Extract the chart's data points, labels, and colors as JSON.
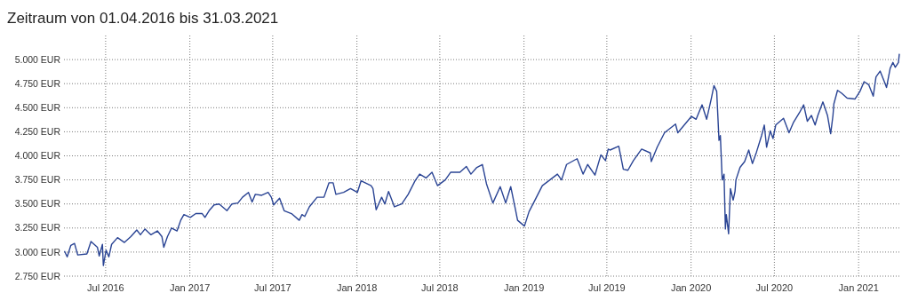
{
  "chart_data": {
    "type": "line",
    "title": "Zeitraum von 01.04.2016 bis 31.03.2021",
    "x": [
      "2016-04-02",
      "2016-04-08",
      "2016-04-16",
      "2016-04-24",
      "2016-05-01",
      "2016-05-21",
      "2016-05-30",
      "2016-06-13",
      "2016-06-17",
      "2016-06-24",
      "2016-06-26",
      "2016-07-02",
      "2016-07-08",
      "2016-07-14",
      "2016-07-27",
      "2016-08-11",
      "2016-08-25",
      "2016-09-07",
      "2016-09-15",
      "2016-09-25",
      "2016-10-08",
      "2016-10-22",
      "2016-11-01",
      "2016-11-05",
      "2016-11-13",
      "2016-11-22",
      "2016-12-04",
      "2016-12-12",
      "2016-12-19",
      "2017-01-02",
      "2017-01-14",
      "2017-01-28",
      "2017-02-03",
      "2017-02-12",
      "2017-02-23",
      "2017-03-06",
      "2017-03-23",
      "2017-04-03",
      "2017-04-16",
      "2017-04-26",
      "2017-05-09",
      "2017-05-17",
      "2017-05-24",
      "2017-06-07",
      "2017-06-21",
      "2017-06-28",
      "2017-07-03",
      "2017-07-16",
      "2017-07-26",
      "2017-08-11",
      "2017-08-28",
      "2017-09-03",
      "2017-09-09",
      "2017-09-19",
      "2017-10-06",
      "2017-10-21",
      "2017-11-01",
      "2017-11-10",
      "2017-11-16",
      "2017-12-03",
      "2017-12-18",
      "2018-01-02",
      "2018-01-10",
      "2018-02-01",
      "2018-02-05",
      "2018-02-12",
      "2018-02-24",
      "2018-03-03",
      "2018-03-11",
      "2018-03-24",
      "2018-04-09",
      "2018-04-23",
      "2018-05-08",
      "2018-05-18",
      "2018-06-01",
      "2018-06-14",
      "2018-06-26",
      "2018-07-13",
      "2018-07-25",
      "2018-08-14",
      "2018-08-28",
      "2018-09-07",
      "2018-09-20",
      "2018-10-02",
      "2018-10-11",
      "2018-10-25",
      "2018-11-10",
      "2018-11-22",
      "2018-12-03",
      "2018-12-13",
      "2018-12-18",
      "2019-01-02",
      "2019-01-12",
      "2019-01-25",
      "2019-02-10",
      "2019-02-24",
      "2019-03-15",
      "2019-03-24",
      "2019-04-04",
      "2019-04-27",
      "2019-05-10",
      "2019-05-20",
      "2019-06-05",
      "2019-06-18",
      "2019-06-28",
      "2019-07-04",
      "2019-07-08",
      "2019-07-27",
      "2019-08-06",
      "2019-08-16",
      "2019-08-28",
      "2019-09-15",
      "2019-10-04",
      "2019-10-06",
      "2019-10-19",
      "2019-11-04",
      "2019-11-28",
      "2019-12-03",
      "2020-01-02",
      "2020-01-12",
      "2020-01-25",
      "2020-02-04",
      "2020-02-14",
      "2020-02-20",
      "2020-02-26",
      "2020-03-02",
      "2020-03-05",
      "2020-03-09",
      "2020-03-13",
      "2020-03-16",
      "2020-03-18",
      "2020-03-23",
      "2020-03-27",
      "2020-04-02",
      "2020-04-06",
      "2020-04-08",
      "2020-04-17",
      "2020-04-27",
      "2020-05-06",
      "2020-05-14",
      "2020-05-23",
      "2020-06-03",
      "2020-06-09",
      "2020-06-14",
      "2020-06-22",
      "2020-06-28",
      "2020-07-04",
      "2020-07-21",
      "2020-08-02",
      "2020-08-12",
      "2020-08-25",
      "2020-09-03",
      "2020-09-11",
      "2020-09-20",
      "2020-09-28",
      "2020-10-04",
      "2020-10-15",
      "2020-10-25",
      "2020-11-01",
      "2020-11-06",
      "2020-11-08",
      "2020-11-16",
      "2020-11-25",
      "2020-12-07",
      "2020-12-24",
      "2021-01-04",
      "2021-01-13",
      "2021-01-23",
      "2021-02-02",
      "2021-02-08",
      "2021-02-17",
      "2021-02-27",
      "2021-03-03",
      "2021-03-11",
      "2021-03-17",
      "2021-03-22",
      "2021-03-29",
      "2021-03-31"
    ],
    "series": [
      {
        "color": "#2a4494",
        "values": [
          3010,
          2950,
          3070,
          3090,
          2970,
          2980,
          3110,
          3050,
          2960,
          3080,
          2860,
          3020,
          2950,
          3080,
          3150,
          3100,
          3160,
          3230,
          3180,
          3240,
          3180,
          3220,
          3160,
          3050,
          3160,
          3250,
          3220,
          3330,
          3390,
          3360,
          3400,
          3400,
          3360,
          3430,
          3490,
          3500,
          3430,
          3500,
          3510,
          3570,
          3620,
          3520,
          3600,
          3590,
          3620,
          3570,
          3490,
          3560,
          3430,
          3400,
          3330,
          3390,
          3370,
          3470,
          3570,
          3570,
          3720,
          3720,
          3600,
          3620,
          3660,
          3620,
          3740,
          3690,
          3660,
          3440,
          3570,
          3500,
          3630,
          3470,
          3500,
          3600,
          3740,
          3810,
          3770,
          3830,
          3690,
          3750,
          3830,
          3830,
          3890,
          3810,
          3880,
          3910,
          3710,
          3510,
          3680,
          3510,
          3680,
          3450,
          3330,
          3270,
          3420,
          3540,
          3690,
          3740,
          3810,
          3750,
          3910,
          3970,
          3810,
          3910,
          3800,
          4010,
          3950,
          4070,
          4060,
          4100,
          3860,
          3850,
          3950,
          4070,
          4030,
          3940,
          4090,
          4240,
          4330,
          4240,
          4410,
          4380,
          4530,
          4380,
          4590,
          4730,
          4670,
          4160,
          4210,
          3750,
          3810,
          3240,
          3390,
          3190,
          3660,
          3540,
          3630,
          3750,
          3880,
          3940,
          4060,
          3920,
          4040,
          4210,
          4320,
          4090,
          4260,
          4180,
          4320,
          4390,
          4240,
          4350,
          4450,
          4530,
          4360,
          4420,
          4320,
          4420,
          4560,
          4420,
          4230,
          4420,
          4540,
          4680,
          4650,
          4600,
          4590,
          4670,
          4770,
          4740,
          4620,
          4820,
          4880,
          4760,
          4710,
          4910,
          4970,
          4920,
          4970,
          5060
        ]
      }
    ],
    "xlim": [
      "2016-04-01",
      "2021-03-31"
    ],
    "xticks": [
      {
        "value": "2016-07-01",
        "label": "Jul 2016"
      },
      {
        "value": "2017-01-01",
        "label": "Jan 2017"
      },
      {
        "value": "2017-07-01",
        "label": "Jul 2017"
      },
      {
        "value": "2018-01-01",
        "label": "Jan 2018"
      },
      {
        "value": "2018-07-01",
        "label": "Jul 2018"
      },
      {
        "value": "2019-01-01",
        "label": "Jan 2019"
      },
      {
        "value": "2019-07-01",
        "label": "Jul 2019"
      },
      {
        "value": "2020-01-01",
        "label": "Jan 2020"
      },
      {
        "value": "2020-07-01",
        "label": "Jul 2020"
      },
      {
        "value": "2021-01-01",
        "label": "Jan 2021"
      }
    ],
    "ylim": [
      2750,
      5250
    ],
    "yticks": [
      {
        "value": 2750,
        "label": "2.750 EUR"
      },
      {
        "value": 3000,
        "label": "3.000 EUR"
      },
      {
        "value": 3250,
        "label": "3.250 EUR"
      },
      {
        "value": 3500,
        "label": "3.500 EUR"
      },
      {
        "value": 3750,
        "label": "3.750 EUR"
      },
      {
        "value": 4000,
        "label": "4.000 EUR"
      },
      {
        "value": 4250,
        "label": "4.250 EUR"
      },
      {
        "value": 4500,
        "label": "4.500 EUR"
      },
      {
        "value": 4750,
        "label": "4.750 EUR"
      },
      {
        "value": 5000,
        "label": "5.000 EUR"
      }
    ],
    "grid": true,
    "marker": "none",
    "line_style": "solid"
  }
}
